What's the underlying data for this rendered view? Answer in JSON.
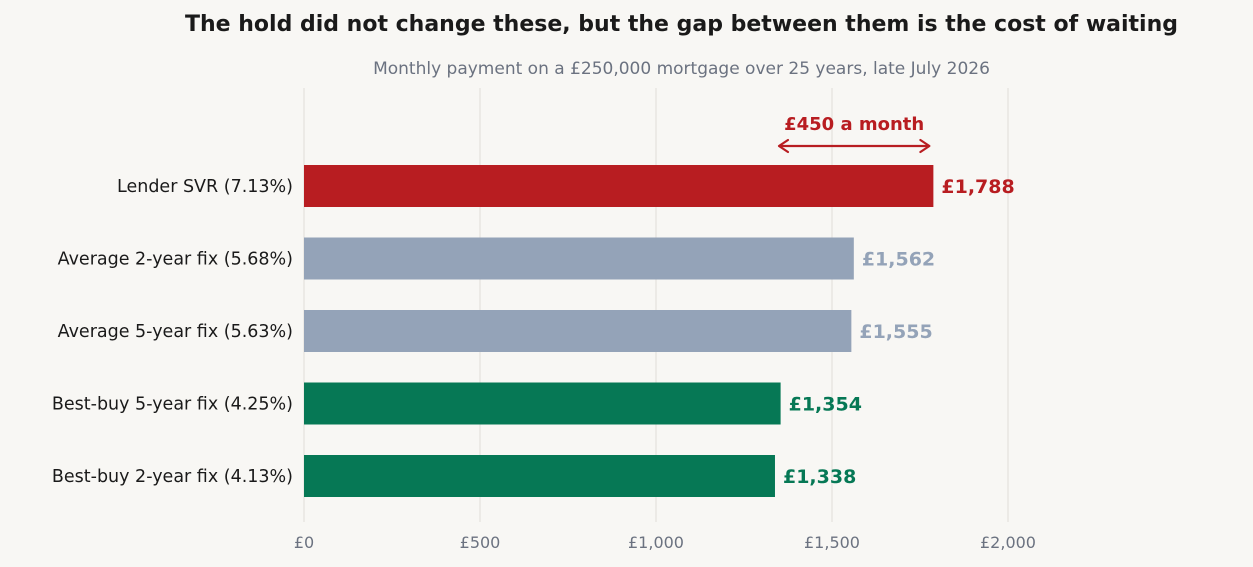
{
  "chart_data": {
    "type": "bar",
    "orientation": "horizontal",
    "title": "The hold did not change these, but the gap between them is the cost of waiting",
    "subtitle": "Monthly payment on a £250,000 mortgage over 25 years, late July 2026",
    "categories": [
      "Lender SVR  (7.13%)",
      "Average 2-year fix  (5.68%)",
      "Average 5-year fix  (5.63%)",
      "Best-buy 5-year fix  (4.25%)",
      "Best-buy 2-year fix  (4.13%)"
    ],
    "values": [
      1788,
      1562,
      1555,
      1354,
      1338
    ],
    "value_labels": [
      "£1,788",
      "£1,562",
      "£1,555",
      "£1,354",
      "£1,338"
    ],
    "colors": [
      "#b81d21",
      "#94a3b8",
      "#94a3b8",
      "#067855",
      "#067855"
    ],
    "xlim": [
      0,
      2000
    ],
    "xticks": [
      0,
      500,
      1000,
      1500,
      2000
    ],
    "xtick_labels": [
      "£0",
      "£500",
      "£1,000",
      "£1,500",
      "£2,000"
    ],
    "grid": "vertical",
    "annotation": {
      "text": "£450 a month",
      "from_value": 1338,
      "to_value": 1788,
      "color": "#b81d21"
    }
  }
}
